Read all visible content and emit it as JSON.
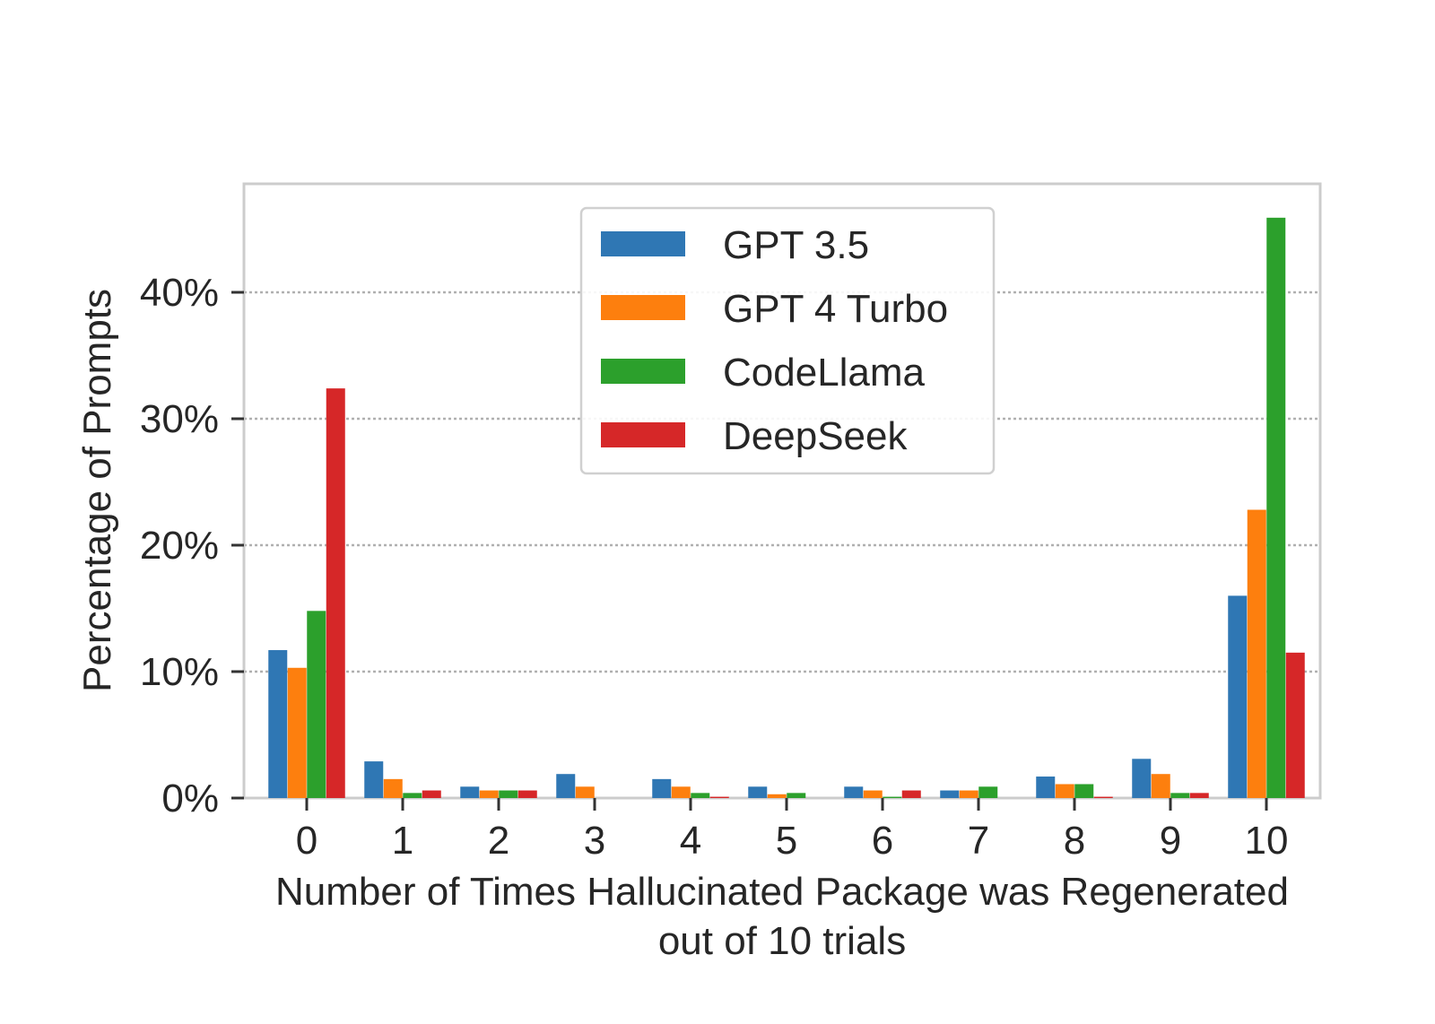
{
  "chart_data": {
    "type": "bar",
    "xlabel": "Number of Times Hallucinated Package was Regenerated",
    "xlabel_line2": "out of 10 trials",
    "ylabel": "Percentage of Prompts",
    "categories": [
      "0",
      "1",
      "2",
      "3",
      "4",
      "5",
      "6",
      "7",
      "8",
      "9",
      "10"
    ],
    "ylim": [
      0,
      48
    ],
    "yticks": [
      0,
      10,
      20,
      30,
      40
    ],
    "ytick_labels": [
      "0%",
      "10%",
      "20%",
      "30%",
      "40%"
    ],
    "grid": "horizontal dotted",
    "legend_position": "upper-center",
    "series": [
      {
        "name": "GPT 3.5",
        "color": "#2f77b4",
        "values": [
          11.7,
          2.9,
          0.9,
          1.9,
          1.5,
          0.9,
          0.9,
          0.6,
          1.7,
          3.1,
          16.0
        ]
      },
      {
        "name": "GPT 4 Turbo",
        "color": "#fd7f0e",
        "values": [
          10.3,
          1.5,
          0.6,
          0.9,
          0.9,
          0.3,
          0.6,
          0.6,
          1.1,
          1.9,
          22.8
        ]
      },
      {
        "name": "CodeLlama",
        "color": "#2ca02c",
        "values": [
          14.8,
          0.4,
          0.6,
          0.0,
          0.4,
          0.4,
          0.1,
          0.9,
          1.1,
          0.4,
          45.9
        ]
      },
      {
        "name": "DeepSeek",
        "color": "#d62728",
        "values": [
          32.4,
          0.6,
          0.6,
          0.0,
          0.1,
          0.0,
          0.6,
          0.0,
          0.1,
          0.4,
          11.5
        ]
      }
    ]
  }
}
